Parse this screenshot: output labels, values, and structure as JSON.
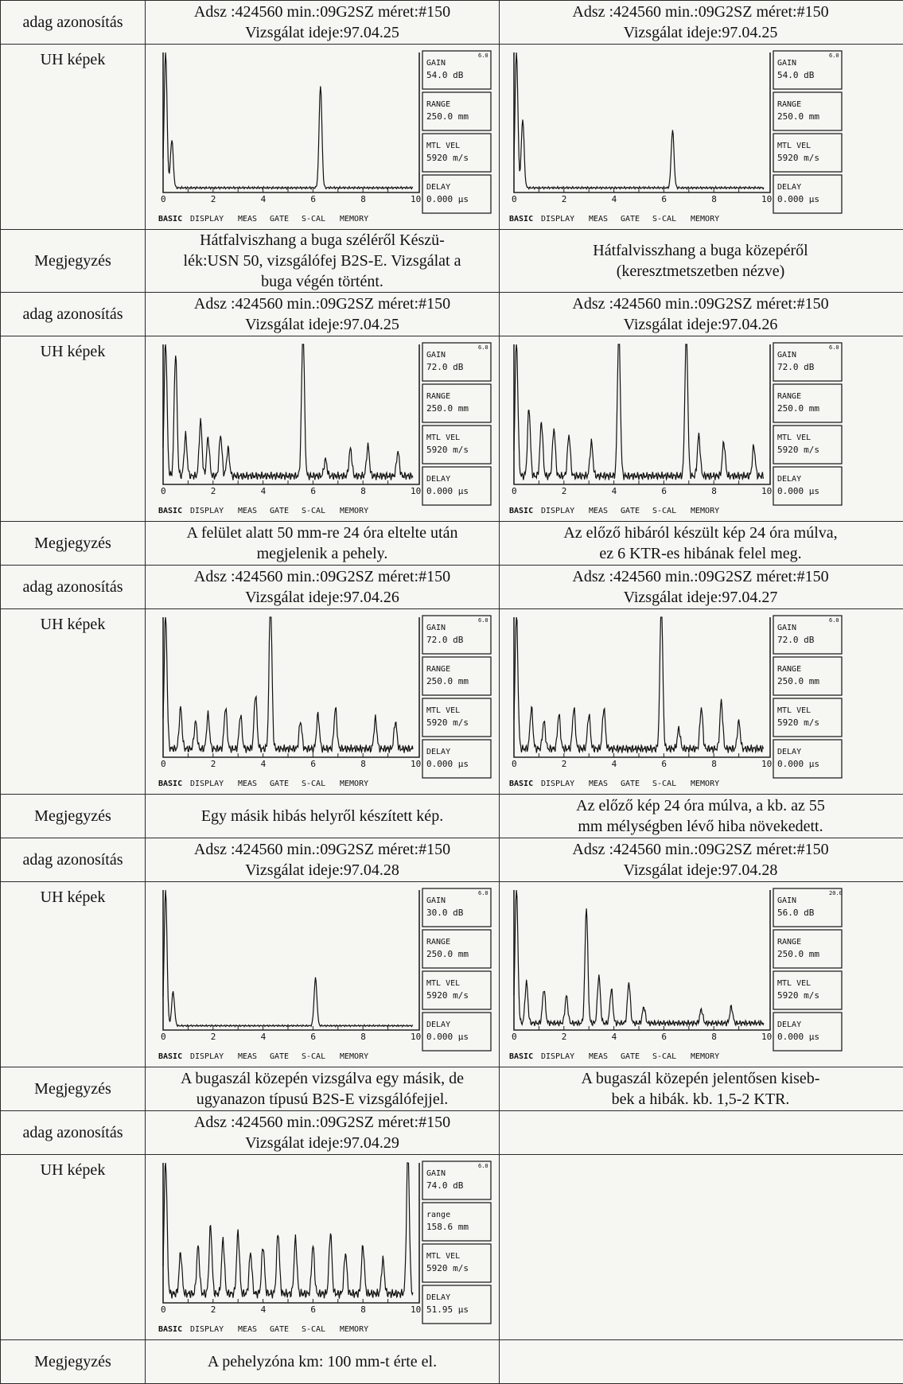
{
  "scope_labels": {
    "gain": "GAIN",
    "range": "RANGE",
    "vel": "MTL VEL",
    "delay": "DELAY",
    "axis": [
      "0",
      "2",
      "4",
      "6",
      "8",
      "10"
    ],
    "menu": [
      "BASIC",
      "DISPLAY",
      "MEAS",
      "GATE",
      "S-CAL",
      "MEMORY"
    ]
  },
  "blocks": [
    {
      "id_label": "adag azonosítás",
      "image_label": "UH képek",
      "note_label": "Megjegyzés",
      "entries": [
        {
          "id_line1": "Adsz :424560 min.:09G2SZ méret:#150",
          "id_line2": "Vizsgálat ideje:97.04.25",
          "scope": {
            "gain_step": "6.0",
            "gain": "54.0 dB",
            "range_label": "RANGE",
            "range": "250.0 mm",
            "vel": "5920 m/s",
            "delay": "0.000 µs"
          },
          "note": [
            "Hátfalviszhang a buga széléről Készü-",
            "lék:USN 50, vizsgálófej B2S-E. Vizsgálat a",
            "buga végén történt."
          ]
        },
        {
          "id_line1": "Adsz :424560 min.:09G2SZ méret:#150",
          "id_line2": "Vizsgálat ideje:97.04.25",
          "scope": {
            "gain_step": "6.0",
            "gain": "54.0 dB",
            "range_label": "RANGE",
            "range": "250.0 mm",
            "vel": "5920 m/s",
            "delay": "0.000 µs"
          },
          "note": [
            "Hátfalvisszhang a buga közepéről",
            "(keresztmetszetben nézve)"
          ]
        }
      ]
    },
    {
      "id_label": "adag azonosítás",
      "image_label": "UH képek",
      "note_label": "Megjegyzés",
      "entries": [
        {
          "id_line1": "Adsz :424560 min.:09G2SZ méret:#150",
          "id_line2": "Vizsgálat ideje:97.04.25",
          "scope": {
            "gain_step": "6.0",
            "gain": "72.0 dB",
            "range_label": "RANGE",
            "range": "250.0 mm",
            "vel": "5920 m/s",
            "delay": "0.000 µs"
          },
          "note": [
            "A felület alatt 50 mm-re 24 óra eltelte után",
            "megjelenik a pehely."
          ]
        },
        {
          "id_line1": "Adsz :424560 min.:09G2SZ méret:#150",
          "id_line2": "Vizsgálat ideje:97.04.26",
          "scope": {
            "gain_step": "6.0",
            "gain": "72.0 dB",
            "range_label": "RANGE",
            "range": "250.0 mm",
            "vel": "5920 m/s",
            "delay": "0.000 µs"
          },
          "note": [
            "Az előző hibáról készült kép 24 óra múlva,",
            "ez 6 KTR-es hibának felel meg."
          ]
        }
      ]
    },
    {
      "id_label": "adag azonosítás",
      "image_label": "UH képek",
      "note_label": "Megjegyzés",
      "entries": [
        {
          "id_line1": "Adsz :424560 min.:09G2SZ méret:#150",
          "id_line2": "Vizsgálat ideje:97.04.26",
          "scope": {
            "gain_step": "6.0",
            "gain": "72.0 dB",
            "range_label": "RANGE",
            "range": "250.0 mm",
            "vel": "5920 m/s",
            "delay": "0.000 µs"
          },
          "note": [
            "Egy másik hibás helyről készített kép."
          ]
        },
        {
          "id_line1": "Adsz :424560 min.:09G2SZ méret:#150",
          "id_line2": "Vizsgálat ideje:97.04.27",
          "scope": {
            "gain_step": "6.0",
            "gain": "72.0 dB",
            "range_label": "RANGE",
            "range": "250.0 mm",
            "vel": "5920 m/s",
            "delay": "0.000 µs"
          },
          "note": [
            "Az előző kép 24 óra múlva, a kb.  az 55",
            "mm mélységben  lévő hiba növekedett."
          ]
        }
      ]
    },
    {
      "id_label": "adag azonosítás",
      "image_label": "UH képek",
      "note_label": "Megjegyzés",
      "entries": [
        {
          "id_line1": "Adsz :424560 min.:09G2SZ méret:#150",
          "id_line2": "Vizsgálat ideje:97.04.28",
          "scope": {
            "gain_step": "6.0",
            "gain": "30.0 dB",
            "range_label": "RANGE",
            "range": "250.0 mm",
            "vel": "5920 m/s",
            "delay": "0.000 µs"
          },
          "note": [
            "A bugaszál közepén vizsgálva egy másik, de",
            "ugyanazon típusú B2S-E vizsgálófejjel."
          ]
        },
        {
          "id_line1": "Adsz :424560 min.:09G2SZ méret:#150",
          "id_line2": "Vizsgálat ideje:97.04.28",
          "scope": {
            "gain_step": "20.0",
            "gain": "56.0 dB",
            "range_label": "RANGE",
            "range": "250.0 mm",
            "vel": "5920 m/s",
            "delay": "0.000 µs"
          },
          "note": [
            "A bugaszál  közepén jelentősen kiseb-",
            "bek a hibák. kb. 1,5-2 KTR."
          ]
        }
      ]
    },
    {
      "id_label": "adag azonosítás",
      "image_label": "UH képek",
      "note_label": "Megjegyzés",
      "entries": [
        {
          "id_line1": "Adsz :424560 min.:09G2SZ méret:#150",
          "id_line2": "Vizsgálat ideje:97.04.29",
          "scope": {
            "gain_step": "6.0",
            "gain": "74.0 dB",
            "range_label": "range",
            "range": "158.6 mm",
            "vel": "5920 m/s",
            "delay": "51.95 µs"
          },
          "note": [
            "A pehelyzóna km: 100 mm-t érte el."
          ]
        }
      ]
    }
  ]
}
